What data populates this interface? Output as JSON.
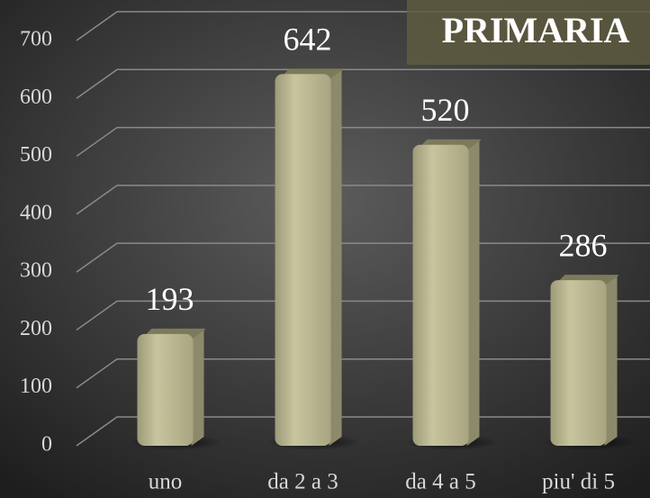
{
  "chart_data": {
    "type": "bar",
    "title": "PRIMARIA",
    "categories": [
      "uno",
      "da 2 a 3",
      "da 4 a 5",
      "piu' di 5"
    ],
    "values": [
      193,
      642,
      520,
      286
    ],
    "color": "#bdb994",
    "ylim": [
      0,
      700
    ],
    "yticks": [
      0,
      100,
      200,
      300,
      400,
      500,
      600,
      700
    ],
    "grid": true
  }
}
